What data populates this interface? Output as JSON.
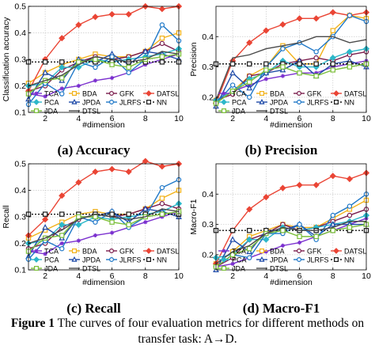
{
  "figure": {
    "label": "Figure 1",
    "caption": "The curves of four evaluation metrics for different methods on transfer task: A→D."
  },
  "legend": {
    "columns": 4,
    "placement": "bottom-inside",
    "order": [
      "TCA",
      "BDA",
      "GFK",
      "DATSL",
      "PCA",
      "JPDA",
      "JLRFS",
      "NN",
      "JDA",
      "DTSL"
    ]
  },
  "series_style": {
    "TCA": {
      "color": "#7b30cf",
      "marker": "star"
    },
    "BDA": {
      "color": "#f2b21a",
      "marker": "square"
    },
    "GFK": {
      "color": "#7a1c4c",
      "marker": "circle"
    },
    "DATSL": {
      "color": "#ea4535",
      "marker": "diamond"
    },
    "PCA": {
      "color": "#2db7c9",
      "marker": "diamond"
    },
    "JPDA": {
      "color": "#1e4aa8",
      "marker": "triangle"
    },
    "JLRFS": {
      "color": "#1f78c8",
      "marker": "circle"
    },
    "NN": {
      "color": "#1a1a1a",
      "marker": "square",
      "dash": "2,2"
    },
    "JDA": {
      "color": "#7bbf3a",
      "marker": "square"
    },
    "DTSL": {
      "color": "#4a4a4a",
      "marker": "none"
    }
  },
  "chart_data": [
    {
      "type": "line",
      "panel_caption": "(a) Accuracy",
      "xlabel": "#dimension",
      "ylabel": "Classification accuracy",
      "x": [
        1,
        2,
        3,
        4,
        5,
        6,
        7,
        8,
        9,
        10
      ],
      "xticks": [
        2,
        4,
        6,
        8,
        10
      ],
      "xlim": [
        1,
        10
      ],
      "ylim": [
        0.1,
        0.5
      ],
      "yticks": [
        0.1,
        0.2,
        0.3,
        0.4,
        0.5
      ],
      "grid": true,
      "series": [
        {
          "name": "TCA",
          "values": [
            0.17,
            0.16,
            0.19,
            0.2,
            0.22,
            0.23,
            0.25,
            0.28,
            0.3,
            0.32
          ]
        },
        {
          "name": "BDA",
          "values": [
            0.21,
            0.25,
            0.28,
            0.3,
            0.32,
            0.31,
            0.31,
            0.33,
            0.38,
            0.4
          ]
        },
        {
          "name": "GFK",
          "values": [
            0.18,
            0.2,
            0.26,
            0.29,
            0.31,
            0.3,
            0.31,
            0.33,
            0.36,
            0.33
          ]
        },
        {
          "name": "DATSL",
          "values": [
            0.18,
            0.3,
            0.38,
            0.43,
            0.46,
            0.47,
            0.47,
            0.5,
            0.49,
            0.5
          ]
        },
        {
          "name": "PCA",
          "values": [
            0.2,
            0.21,
            0.27,
            0.27,
            0.3,
            0.29,
            0.3,
            0.31,
            0.32,
            0.34
          ]
        },
        {
          "name": "JPDA",
          "values": [
            0.15,
            0.25,
            0.22,
            0.3,
            0.29,
            0.32,
            0.28,
            0.33,
            0.32,
            0.3
          ]
        },
        {
          "name": "JLRFS",
          "values": [
            0.13,
            0.21,
            0.17,
            0.29,
            0.27,
            0.31,
            0.25,
            0.3,
            0.43,
            0.37
          ]
        },
        {
          "name": "NN",
          "values": [
            0.29,
            0.29,
            0.29,
            0.29,
            0.29,
            0.29,
            0.29,
            0.29,
            0.29,
            0.29
          ]
        },
        {
          "name": "JDA",
          "values": [
            0.17,
            0.22,
            0.23,
            0.29,
            0.3,
            0.28,
            0.27,
            0.3,
            0.31,
            0.32
          ]
        },
        {
          "name": "DTSL",
          "values": [
            0.2,
            0.22,
            0.24,
            0.28,
            0.31,
            0.3,
            0.29,
            0.3,
            0.33,
            0.32
          ]
        }
      ]
    },
    {
      "type": "line",
      "panel_caption": "(b) Precision",
      "xlabel": "#dimension",
      "ylabel": "Precision",
      "x": [
        1,
        2,
        3,
        4,
        5,
        6,
        7,
        8,
        9,
        10
      ],
      "xticks": [
        2,
        4,
        6,
        8,
        10
      ],
      "xlim": [
        1,
        10
      ],
      "ylim": [
        0.15,
        0.5
      ],
      "yticks": [
        0.2,
        0.3,
        0.4
      ],
      "grid": true,
      "series": [
        {
          "name": "TCA",
          "values": [
            0.19,
            0.22,
            0.24,
            0.26,
            0.27,
            0.28,
            0.28,
            0.3,
            0.31,
            0.32
          ]
        },
        {
          "name": "BDA",
          "values": [
            0.19,
            0.22,
            0.27,
            0.3,
            0.37,
            0.31,
            0.31,
            0.42,
            0.47,
            0.46
          ]
        },
        {
          "name": "GFK",
          "values": [
            0.19,
            0.21,
            0.27,
            0.28,
            0.31,
            0.32,
            0.33,
            0.32,
            0.34,
            0.35
          ]
        },
        {
          "name": "DATSL",
          "values": [
            0.18,
            0.32,
            0.38,
            0.42,
            0.44,
            0.46,
            0.46,
            0.48,
            0.47,
            0.48
          ]
        },
        {
          "name": "PCA",
          "values": [
            0.19,
            0.22,
            0.26,
            0.28,
            0.32,
            0.3,
            0.3,
            0.33,
            0.35,
            0.36
          ]
        },
        {
          "name": "JPDA",
          "values": [
            0.17,
            0.28,
            0.23,
            0.28,
            0.29,
            0.32,
            0.27,
            0.31,
            0.32,
            0.3
          ]
        },
        {
          "name": "JLRFS",
          "values": [
            0.18,
            0.24,
            0.2,
            0.3,
            0.36,
            0.38,
            0.35,
            0.4,
            0.47,
            0.45
          ]
        },
        {
          "name": "NN",
          "values": [
            0.31,
            0.31,
            0.31,
            0.31,
            0.31,
            0.31,
            0.31,
            0.31,
            0.31,
            0.31
          ]
        },
        {
          "name": "JDA",
          "values": [
            0.18,
            0.22,
            0.25,
            0.29,
            0.3,
            0.28,
            0.27,
            0.29,
            0.3,
            0.31
          ]
        },
        {
          "name": "DTSL",
          "values": [
            0.19,
            0.33,
            0.34,
            0.36,
            0.37,
            0.38,
            0.4,
            0.4,
            0.38,
            0.39
          ]
        }
      ]
    },
    {
      "type": "line",
      "panel_caption": "(c) Recall",
      "xlabel": "#dimension",
      "ylabel": "Recall",
      "x": [
        1,
        2,
        3,
        4,
        5,
        6,
        7,
        8,
        9,
        10
      ],
      "xticks": [
        2,
        4,
        6,
        8,
        10
      ],
      "xlim": [
        1,
        10
      ],
      "ylim": [
        0.1,
        0.5
      ],
      "yticks": [
        0.1,
        0.2,
        0.3,
        0.4,
        0.5
      ],
      "grid": true,
      "series": [
        {
          "name": "TCA",
          "values": [
            0.17,
            0.16,
            0.2,
            0.21,
            0.23,
            0.24,
            0.26,
            0.28,
            0.3,
            0.32
          ]
        },
        {
          "name": "BDA",
          "values": [
            0.22,
            0.25,
            0.28,
            0.31,
            0.32,
            0.31,
            0.31,
            0.33,
            0.37,
            0.4
          ]
        },
        {
          "name": "GFK",
          "values": [
            0.18,
            0.2,
            0.26,
            0.29,
            0.31,
            0.3,
            0.31,
            0.33,
            0.35,
            0.33
          ]
        },
        {
          "name": "DATSL",
          "values": [
            0.23,
            0.29,
            0.38,
            0.43,
            0.47,
            0.48,
            0.47,
            0.51,
            0.49,
            0.5
          ]
        },
        {
          "name": "PCA",
          "values": [
            0.2,
            0.21,
            0.27,
            0.27,
            0.3,
            0.29,
            0.3,
            0.31,
            0.32,
            0.35
          ]
        },
        {
          "name": "JPDA",
          "values": [
            0.15,
            0.26,
            0.22,
            0.3,
            0.3,
            0.32,
            0.28,
            0.33,
            0.32,
            0.3
          ]
        },
        {
          "name": "JLRFS",
          "values": [
            0.14,
            0.21,
            0.18,
            0.3,
            0.28,
            0.32,
            0.26,
            0.3,
            0.41,
            0.44
          ]
        },
        {
          "name": "NN",
          "values": [
            0.31,
            0.31,
            0.31,
            0.31,
            0.31,
            0.31,
            0.31,
            0.31,
            0.31,
            0.31
          ]
        },
        {
          "name": "JDA",
          "values": [
            0.17,
            0.22,
            0.23,
            0.3,
            0.3,
            0.28,
            0.27,
            0.3,
            0.31,
            0.32
          ]
        },
        {
          "name": "DTSL",
          "values": [
            0.2,
            0.22,
            0.25,
            0.29,
            0.31,
            0.3,
            0.29,
            0.3,
            0.33,
            0.32
          ]
        }
      ]
    },
    {
      "type": "line",
      "panel_caption": "(d) Macro-F1",
      "xlabel": "#dimension",
      "ylabel": "Macro-F1",
      "x": [
        1,
        2,
        3,
        4,
        5,
        6,
        7,
        8,
        9,
        10
      ],
      "xticks": [
        2,
        4,
        6,
        8,
        10
      ],
      "xlim": [
        1,
        10
      ],
      "ylim": [
        0.15,
        0.5
      ],
      "yticks": [
        0.2,
        0.3,
        0.4
      ],
      "grid": true,
      "series": [
        {
          "name": "TCA",
          "values": [
            0.16,
            0.17,
            0.19,
            0.21,
            0.23,
            0.24,
            0.26,
            0.28,
            0.3,
            0.32
          ]
        },
        {
          "name": "BDA",
          "values": [
            0.17,
            0.21,
            0.26,
            0.28,
            0.3,
            0.29,
            0.29,
            0.32,
            0.35,
            0.38
          ]
        },
        {
          "name": "GFK",
          "values": [
            0.16,
            0.19,
            0.25,
            0.27,
            0.3,
            0.28,
            0.29,
            0.31,
            0.33,
            0.35
          ]
        },
        {
          "name": "DATSL",
          "values": [
            0.17,
            0.28,
            0.35,
            0.39,
            0.42,
            0.43,
            0.43,
            0.46,
            0.45,
            0.47
          ]
        },
        {
          "name": "PCA",
          "values": [
            0.19,
            0.2,
            0.25,
            0.25,
            0.29,
            0.28,
            0.29,
            0.3,
            0.31,
            0.33
          ]
        },
        {
          "name": "JPDA",
          "values": [
            0.15,
            0.25,
            0.21,
            0.28,
            0.28,
            0.3,
            0.26,
            0.3,
            0.3,
            0.3
          ]
        },
        {
          "name": "JLRFS",
          "values": [
            0.16,
            0.2,
            0.19,
            0.27,
            0.27,
            0.3,
            0.25,
            0.33,
            0.36,
            0.4
          ]
        },
        {
          "name": "NN",
          "values": [
            0.28,
            0.28,
            0.28,
            0.28,
            0.28,
            0.28,
            0.28,
            0.28,
            0.28,
            0.28
          ]
        },
        {
          "name": "JDA",
          "values": [
            0.16,
            0.2,
            0.22,
            0.27,
            0.28,
            0.26,
            0.26,
            0.28,
            0.29,
            0.3
          ]
        },
        {
          "name": "DTSL",
          "values": [
            0.17,
            0.21,
            0.23,
            0.27,
            0.29,
            0.28,
            0.28,
            0.29,
            0.31,
            0.31
          ]
        }
      ]
    }
  ]
}
